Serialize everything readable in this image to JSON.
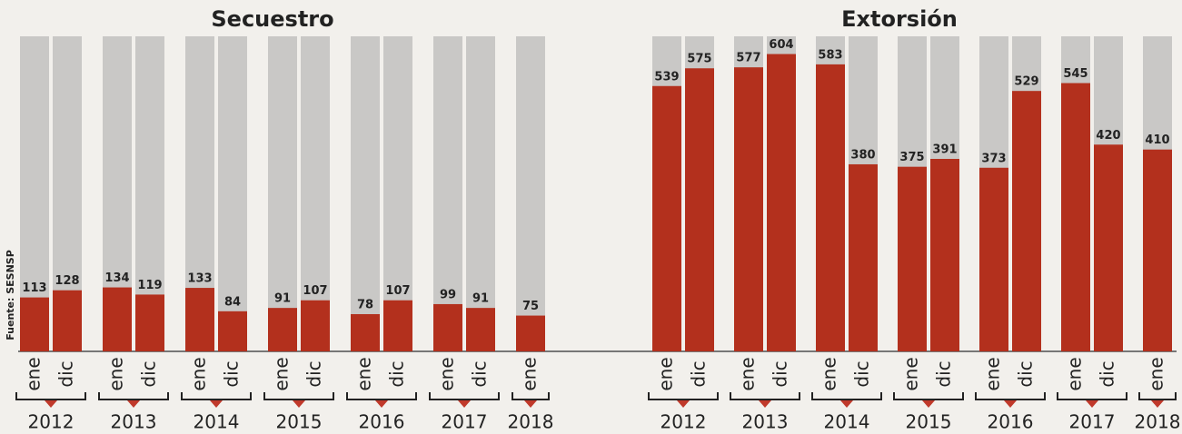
{
  "source": "Fuente: SESNSP",
  "chart_data": [
    {
      "type": "bar",
      "title": "Secuestro",
      "categories": [
        "ene",
        "dic",
        "ene",
        "dic",
        "ene",
        "dic",
        "ene",
        "dic",
        "ene",
        "dic",
        "ene",
        "dic",
        "ene"
      ],
      "years": [
        "2012",
        "2013",
        "2014",
        "2015",
        "2016",
        "2017",
        "2018"
      ],
      "values": [
        113,
        128,
        134,
        119,
        133,
        84,
        91,
        107,
        78,
        107,
        99,
        91,
        75
      ],
      "color": "#b3301d",
      "ylim": [
        0,
        660
      ]
    },
    {
      "type": "bar",
      "title": "Extorsión",
      "categories": [
        "ene",
        "dic",
        "ene",
        "dic",
        "ene",
        "dic",
        "ene",
        "dic",
        "ene",
        "dic",
        "ene",
        "dic",
        "ene"
      ],
      "years": [
        "2012",
        "2013",
        "2014",
        "2015",
        "2016",
        "2017",
        "2018"
      ],
      "values": [
        539,
        575,
        577,
        604,
        583,
        380,
        375,
        391,
        373,
        529,
        545,
        420,
        410
      ],
      "color": "#b3301d",
      "ylim": [
        0,
        640
      ]
    }
  ]
}
